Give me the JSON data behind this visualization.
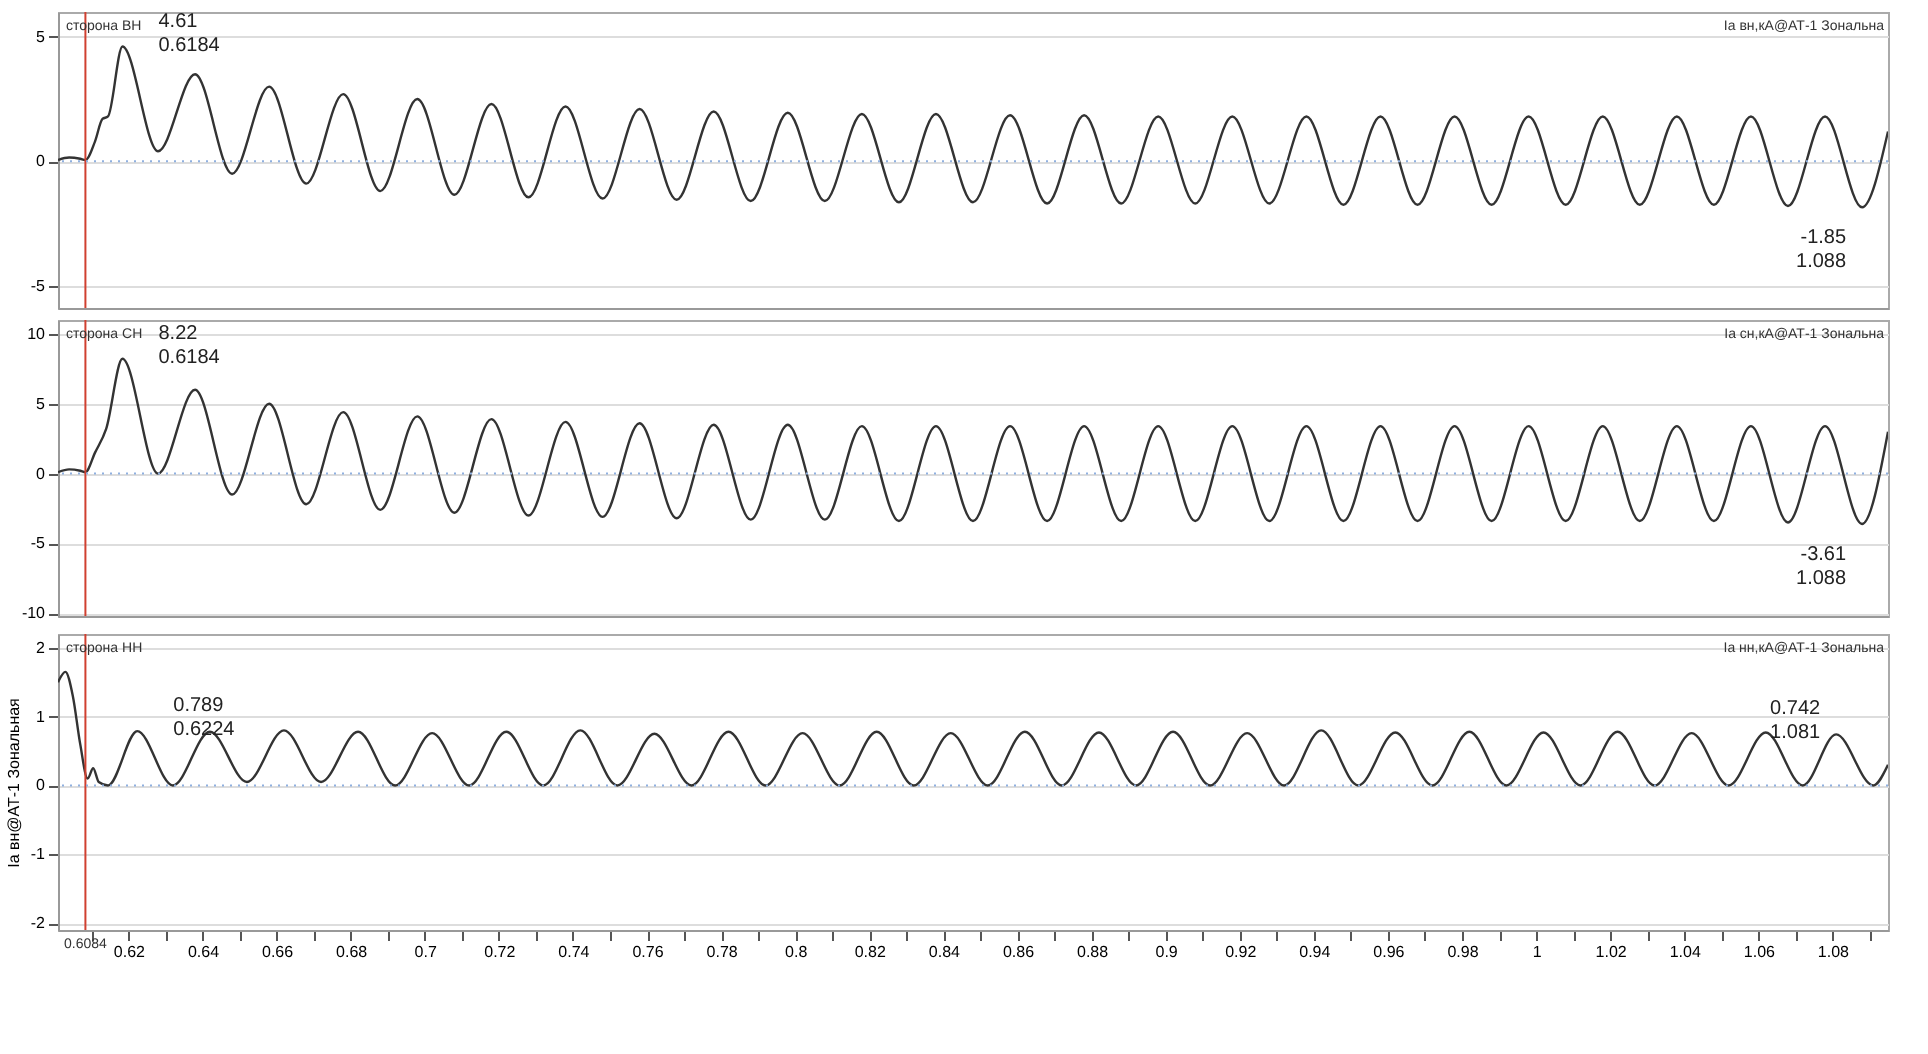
{
  "chart_data": [
    {
      "type": "line",
      "title": "сторона ВН",
      "grid": "y",
      "tick_labels": "y",
      "xlim": [
        0.601,
        1.095
      ],
      "ylim": [
        -5.9,
        6
      ],
      "yticks": [
        -5,
        0,
        5
      ],
      "ref_lines": [
        {
          "axis": "x",
          "value": 0.6084,
          "color": "#d04030"
        },
        {
          "axis": "y",
          "value": 0,
          "color": "#8fb0e0",
          "line_style": "dotted"
        }
      ],
      "annotations": [
        {
          "text": "4.61\n0.6184",
          "x": 0.6184,
          "y": 4.61
        },
        {
          "text": "-1.85\n1.088",
          "x": 1.088,
          "y": -1.85
        }
      ],
      "series": [
        {
          "name": "Ia вн,кА@АТ-1 Зональна",
          "color": "#333333",
          "x": [
            0.601,
            0.604,
            0.607,
            0.6084,
            0.611,
            0.613,
            0.6145,
            0.6184,
            0.628,
            0.638,
            0.648,
            0.658,
            0.668,
            0.678,
            0.688,
            0.698,
            0.708,
            0.718,
            0.728,
            0.738,
            0.748,
            0.758,
            0.768,
            0.778,
            0.788,
            0.798,
            0.808,
            0.818,
            0.828,
            0.838,
            0.848,
            0.858,
            0.868,
            0.878,
            0.888,
            0.898,
            0.908,
            0.918,
            0.928,
            0.938,
            0.948,
            0.958,
            0.968,
            0.978,
            0.988,
            0.998,
            1.008,
            1.018,
            1.028,
            1.038,
            1.048,
            1.058,
            1.068,
            1.078,
            1.088,
            1.095
          ],
          "values": [
            0.05,
            0.15,
            0.1,
            0.05,
            0.8,
            1.7,
            1.8,
            4.61,
            0.4,
            3.5,
            -0.5,
            3.0,
            -0.9,
            2.7,
            -1.2,
            2.5,
            -1.35,
            2.3,
            -1.45,
            2.2,
            -1.5,
            2.1,
            -1.55,
            2.0,
            -1.6,
            1.95,
            -1.6,
            1.9,
            -1.65,
            1.9,
            -1.65,
            1.85,
            -1.7,
            1.85,
            -1.7,
            1.8,
            -1.7,
            1.8,
            -1.7,
            1.8,
            -1.75,
            1.8,
            -1.75,
            1.8,
            -1.75,
            1.8,
            -1.75,
            1.8,
            -1.75,
            1.8,
            -1.75,
            1.8,
            -1.8,
            1.8,
            -1.85,
            1.2
          ]
        }
      ]
    },
    {
      "type": "line",
      "title": "сторона СН",
      "grid": "y",
      "tick_labels": "y",
      "xlim": [
        0.601,
        1.095
      ],
      "ylim": [
        -10.2,
        11
      ],
      "yticks": [
        -10,
        -5,
        0,
        5,
        10
      ],
      "ref_lines": [
        {
          "axis": "x",
          "value": 0.6084,
          "color": "#d04030"
        },
        {
          "axis": "y",
          "value": 0,
          "color": "#8fb0e0",
          "line_style": "dotted"
        }
      ],
      "annotations": [
        {
          "text": "8.22\n0.6184",
          "x": 0.6184,
          "y": 8.22
        },
        {
          "text": "-3.61\n1.088",
          "x": 1.088,
          "y": -3.61
        }
      ],
      "series": [
        {
          "name": "Ia сн,кА@АТ-1 Зональна",
          "color": "#333333",
          "x": [
            0.601,
            0.604,
            0.607,
            0.6084,
            0.611,
            0.614,
            0.6184,
            0.628,
            0.638,
            0.648,
            0.658,
            0.668,
            0.678,
            0.688,
            0.698,
            0.708,
            0.718,
            0.728,
            0.738,
            0.748,
            0.758,
            0.768,
            0.778,
            0.788,
            0.798,
            0.808,
            0.818,
            0.828,
            0.838,
            0.848,
            0.858,
            0.868,
            0.878,
            0.888,
            0.898,
            0.908,
            0.918,
            0.928,
            0.938,
            0.948,
            0.958,
            0.968,
            0.978,
            0.988,
            0.998,
            1.008,
            1.018,
            1.028,
            1.038,
            1.048,
            1.058,
            1.068,
            1.078,
            1.088,
            1.095
          ],
          "values": [
            0.1,
            0.3,
            0.2,
            0.1,
            1.5,
            3.2,
            8.22,
            0.0,
            6.0,
            -1.5,
            5.0,
            -2.2,
            4.4,
            -2.6,
            4.1,
            -2.8,
            3.9,
            -3.0,
            3.7,
            -3.1,
            3.6,
            -3.2,
            3.5,
            -3.3,
            3.5,
            -3.3,
            3.4,
            -3.4,
            3.4,
            -3.4,
            3.4,
            -3.4,
            3.4,
            -3.4,
            3.4,
            -3.4,
            3.4,
            -3.4,
            3.4,
            -3.4,
            3.4,
            -3.4,
            3.4,
            -3.4,
            3.4,
            -3.4,
            3.4,
            -3.4,
            3.4,
            -3.4,
            3.4,
            -3.5,
            3.4,
            -3.61,
            3.0
          ]
        }
      ]
    },
    {
      "type": "line",
      "title": "сторона НН",
      "ylabel": "Ia вн@АТ-1 Зональная",
      "grid": "y",
      "xlim": [
        0.601,
        1.095
      ],
      "ylim": [
        -2.1,
        2.2
      ],
      "yticks": [
        -2,
        -1,
        0,
        1,
        2
      ],
      "xticks": [
        {
          "value": 0.61,
          "label": null
        },
        0.62,
        {
          "value": 0.63,
          "label": null
        },
        0.64,
        {
          "value": 0.65,
          "label": null
        },
        0.66,
        {
          "value": 0.67,
          "label": null
        },
        0.68,
        {
          "value": 0.69,
          "label": null
        },
        0.7,
        {
          "value": 0.71,
          "label": null
        },
        0.72,
        {
          "value": 0.73,
          "label": null
        },
        0.74,
        {
          "value": 0.75,
          "label": null
        },
        0.76,
        {
          "value": 0.77,
          "label": null
        },
        0.78,
        {
          "value": 0.79,
          "label": null
        },
        0.8,
        {
          "value": 0.81,
          "label": null
        },
        0.82,
        {
          "value": 0.83,
          "label": null
        },
        0.84,
        {
          "value": 0.85,
          "label": null
        },
        0.86,
        {
          "value": 0.87,
          "label": null
        },
        0.88,
        {
          "value": 0.89,
          "label": null
        },
        0.9,
        {
          "value": 0.91,
          "label": null
        },
        0.92,
        {
          "value": 0.93,
          "label": null
        },
        0.94,
        {
          "value": 0.95,
          "label": null
        },
        0.96,
        {
          "value": 0.97,
          "label": null
        },
        0.98,
        {
          "value": 0.99,
          "label": null
        },
        1,
        {
          "value": 1.01,
          "label": null
        },
        1.02,
        {
          "value": 1.03,
          "label": null
        },
        1.04,
        {
          "value": 1.05,
          "label": null
        },
        1.06,
        {
          "value": 1.07,
          "label": null
        },
        1.08,
        {
          "value": 1.09,
          "label": null
        }
      ],
      "ref_lines": [
        {
          "axis": "x",
          "value": 0.6084,
          "color": "#d04030",
          "label": "0.6084"
        },
        {
          "axis": "y",
          "value": 0,
          "color": "#8fb0e0",
          "line_style": "dotted"
        }
      ],
      "annotations": [
        {
          "text": "0.789\n0.6224",
          "x": 0.6224,
          "y": 0.789
        },
        {
          "text": "0.742\n1.081",
          "x": 1.081,
          "y": 0.742
        }
      ],
      "series": [
        {
          "name": "Ia нн,кА@АТ-1 Зональна",
          "color": "#333333",
          "x": [
            0.601,
            0.603,
            0.605,
            0.607,
            0.609,
            0.6105,
            0.612,
            0.6145,
            0.6224,
            0.632,
            0.642,
            0.652,
            0.662,
            0.672,
            0.682,
            0.692,
            0.702,
            0.712,
            0.722,
            0.732,
            0.742,
            0.752,
            0.762,
            0.772,
            0.782,
            0.792,
            0.802,
            0.812,
            0.822,
            0.832,
            0.842,
            0.852,
            0.862,
            0.872,
            0.882,
            0.892,
            0.902,
            0.912,
            0.922,
            0.932,
            0.942,
            0.952,
            0.962,
            0.972,
            0.982,
            0.992,
            1.002,
            1.012,
            1.022,
            1.032,
            1.042,
            1.052,
            1.062,
            1.072,
            1.081,
            1.091,
            1.095
          ],
          "values": [
            1.5,
            1.65,
            1.3,
            0.6,
            0.1,
            0.25,
            0.05,
            0.0,
            0.789,
            0.0,
            0.78,
            0.05,
            0.8,
            0.05,
            0.78,
            0.0,
            0.76,
            0.0,
            0.78,
            0.0,
            0.8,
            0.0,
            0.75,
            0.0,
            0.78,
            0.0,
            0.76,
            0.0,
            0.78,
            0.0,
            0.76,
            0.0,
            0.78,
            0.0,
            0.77,
            0.0,
            0.78,
            0.0,
            0.76,
            0.0,
            0.8,
            0.0,
            0.77,
            0.0,
            0.78,
            0.0,
            0.77,
            0.0,
            0.78,
            0.0,
            0.76,
            0.0,
            0.77,
            0.0,
            0.742,
            0.0,
            0.3
          ]
        }
      ]
    }
  ]
}
